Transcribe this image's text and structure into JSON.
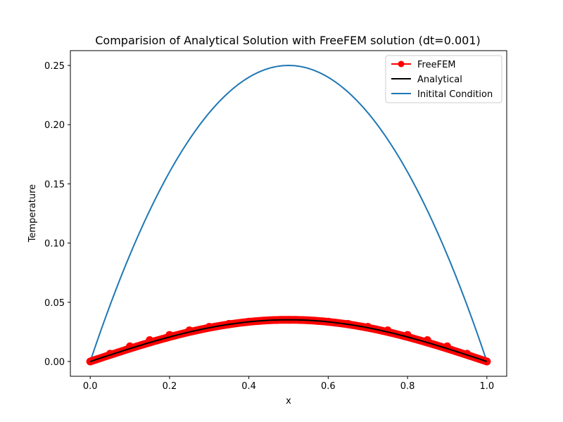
{
  "chart_data": {
    "type": "line",
    "title": "Comparision of Analytical Solution with FreeFEM solution (dt=0.001)",
    "xlabel": "x",
    "ylabel": "Temperature",
    "xlim": [
      -0.05,
      1.05
    ],
    "ylim": [
      -0.0125,
      0.2625
    ],
    "xticks": [
      0.0,
      0.2,
      0.4,
      0.6,
      0.8,
      1.0
    ],
    "xtick_labels": [
      "0.0",
      "0.2",
      "0.4",
      "0.6",
      "0.8",
      "1.0"
    ],
    "yticks": [
      0.0,
      0.05,
      0.1,
      0.15,
      0.2,
      0.25
    ],
    "ytick_labels": [
      "0.00",
      "0.05",
      "0.10",
      "0.15",
      "0.20",
      "0.25"
    ],
    "grid": false,
    "legend_position": "top-right",
    "series": [
      {
        "name": "FreeFEM",
        "color": "#ff0000",
        "marker": "circle",
        "x": [
          0.0,
          0.05,
          0.1,
          0.15,
          0.2,
          0.25,
          0.3,
          0.35,
          0.4,
          0.45,
          0.5,
          0.55,
          0.6,
          0.65,
          0.7,
          0.75,
          0.8,
          0.85,
          0.9,
          0.95,
          1.0
        ],
        "y": [
          0.0,
          0.0066,
          0.0128,
          0.0181,
          0.0225,
          0.0263,
          0.0293,
          0.0318,
          0.0337,
          0.0348,
          0.0352,
          0.0348,
          0.0337,
          0.0318,
          0.0293,
          0.0263,
          0.0225,
          0.0181,
          0.0128,
          0.0066,
          0.0
        ]
      },
      {
        "name": "Analytical",
        "color": "#000000",
        "x": [
          0.0,
          0.05,
          0.1,
          0.15,
          0.2,
          0.25,
          0.3,
          0.35,
          0.4,
          0.45,
          0.5,
          0.55,
          0.6,
          0.65,
          0.7,
          0.75,
          0.8,
          0.85,
          0.9,
          0.95,
          1.0
        ],
        "y": [
          0.0,
          0.0066,
          0.0128,
          0.0181,
          0.0225,
          0.0263,
          0.0293,
          0.0318,
          0.0337,
          0.0348,
          0.0352,
          0.0348,
          0.0337,
          0.0318,
          0.0293,
          0.0263,
          0.0225,
          0.0181,
          0.0128,
          0.0066,
          0.0
        ]
      },
      {
        "name": "Initital Condition",
        "color": "#1f77b4",
        "x": [
          0.0,
          0.05,
          0.1,
          0.15,
          0.2,
          0.25,
          0.3,
          0.35,
          0.4,
          0.45,
          0.5,
          0.55,
          0.6,
          0.65,
          0.7,
          0.75,
          0.8,
          0.85,
          0.9,
          0.95,
          1.0
        ],
        "y": [
          0.0,
          0.0475,
          0.09,
          0.1275,
          0.16,
          0.1875,
          0.21,
          0.2275,
          0.24,
          0.2475,
          0.25,
          0.2475,
          0.24,
          0.2275,
          0.21,
          0.1875,
          0.16,
          0.1275,
          0.09,
          0.0475,
          0.0
        ]
      }
    ]
  }
}
